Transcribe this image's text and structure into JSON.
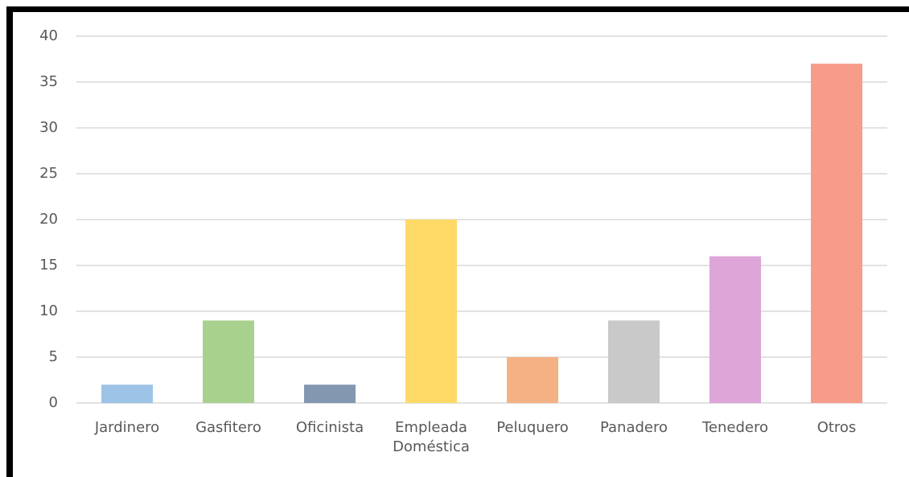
{
  "chart_data": {
    "type": "bar",
    "categories": [
      "Jardinero",
      "Gasfitero",
      "Oficinista",
      "Empleada Doméstica",
      "Peluquero",
      "Panadero",
      "Tenedero",
      "Otros"
    ],
    "values": [
      2,
      9,
      2,
      20,
      5,
      9,
      16,
      37
    ],
    "colors": [
      "#9dc3e6",
      "#a9d18e",
      "#8497b0",
      "#ffd966",
      "#f4b183",
      "#c9c9c9",
      "#dda5d8",
      "#f79b8b"
    ],
    "ylim": [
      0,
      40
    ],
    "yticks": [
      0,
      5,
      10,
      15,
      20,
      25,
      30,
      35,
      40
    ],
    "grid": true
  }
}
